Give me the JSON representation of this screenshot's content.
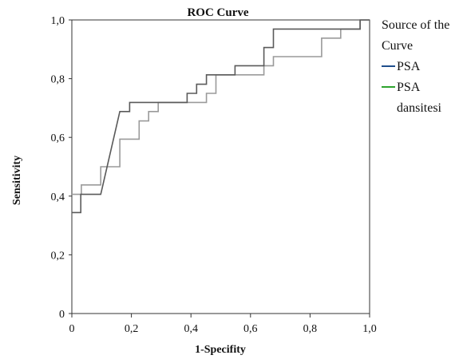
{
  "chart_data": {
    "type": "line",
    "title": "ROC Curve",
    "xlabel": "1-Specifity",
    "ylabel": "Sensitivity",
    "xlim": [
      0,
      1
    ],
    "ylim": [
      0,
      1
    ],
    "xticks": [
      "0",
      "0,2",
      "0,4",
      "0,6",
      "0,8",
      "1,0"
    ],
    "yticks": [
      "0",
      "0,2",
      "0,4",
      "0,6",
      "0,8",
      "1,0"
    ],
    "legend": {
      "title": "Source of the Curve",
      "position": "right"
    },
    "series": [
      {
        "name": "PSA",
        "color": "#1f4e8c",
        "line_color_rendered": "#5a5a5a",
        "points": [
          [
            0,
            0.344
          ],
          [
            0.03,
            0.344
          ],
          [
            0.03,
            0.406
          ],
          [
            0.097,
            0.406
          ],
          [
            0.161,
            0.688
          ],
          [
            0.194,
            0.688
          ],
          [
            0.194,
            0.719
          ],
          [
            0.387,
            0.719
          ],
          [
            0.387,
            0.75
          ],
          [
            0.419,
            0.75
          ],
          [
            0.419,
            0.781
          ],
          [
            0.452,
            0.781
          ],
          [
            0.452,
            0.813
          ],
          [
            0.548,
            0.813
          ],
          [
            0.548,
            0.844
          ],
          [
            0.645,
            0.844
          ],
          [
            0.645,
            0.906
          ],
          [
            0.677,
            0.906
          ],
          [
            0.677,
            0.969
          ],
          [
            0.968,
            0.969
          ],
          [
            0.968,
            1.0
          ],
          [
            1.0,
            1.0
          ]
        ]
      },
      {
        "name": "PSA dansitesi",
        "color": "#2ea32e",
        "line_color_rendered": "#9a9a9a",
        "points": [
          [
            0,
            0.406
          ],
          [
            0.032,
            0.406
          ],
          [
            0.032,
            0.438
          ],
          [
            0.097,
            0.438
          ],
          [
            0.097,
            0.5
          ],
          [
            0.161,
            0.5
          ],
          [
            0.161,
            0.594
          ],
          [
            0.226,
            0.594
          ],
          [
            0.226,
            0.656
          ],
          [
            0.258,
            0.656
          ],
          [
            0.258,
            0.688
          ],
          [
            0.29,
            0.688
          ],
          [
            0.29,
            0.719
          ],
          [
            0.452,
            0.719
          ],
          [
            0.452,
            0.75
          ],
          [
            0.484,
            0.75
          ],
          [
            0.484,
            0.813
          ],
          [
            0.645,
            0.813
          ],
          [
            0.645,
            0.844
          ],
          [
            0.677,
            0.844
          ],
          [
            0.677,
            0.875
          ],
          [
            0.839,
            0.875
          ],
          [
            0.839,
            0.938
          ],
          [
            0.903,
            0.938
          ],
          [
            0.903,
            0.969
          ],
          [
            0.968,
            0.969
          ],
          [
            0.968,
            1.0
          ],
          [
            1.0,
            1.0
          ]
        ]
      }
    ]
  }
}
